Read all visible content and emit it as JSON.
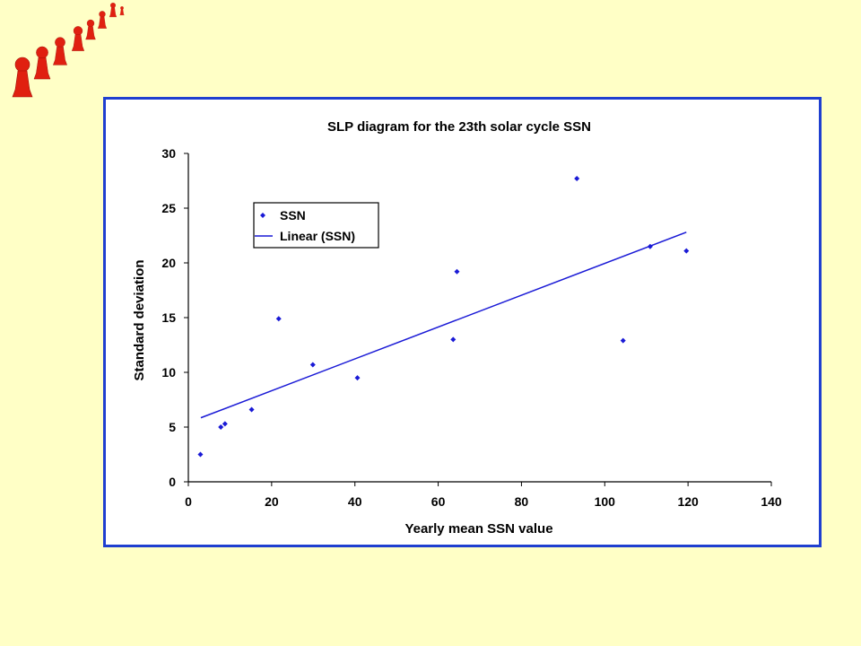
{
  "logo": {
    "icon": "pawn-figures-icon",
    "color": "#E02010"
  },
  "chart_data": {
    "type": "scatter",
    "title": "SLP diagram for the 23th solar cycle SSN",
    "xlabel": "Yearly mean SSN value",
    "ylabel": "Standard deviation",
    "xlim": [
      0,
      140
    ],
    "ylim": [
      0,
      30
    ],
    "x_ticks": [
      "0",
      "20",
      "40",
      "60",
      "80",
      "100",
      "120",
      "140"
    ],
    "y_ticks": [
      "0",
      "5",
      "10",
      "15",
      "20",
      "25",
      "30"
    ],
    "grid": false,
    "legend_position": "top-left",
    "series": [
      {
        "name": "SSN",
        "kind": "points",
        "color": "#1A1AD6",
        "points": [
          [
            2.9,
            2.5
          ],
          [
            7.8,
            5.0
          ],
          [
            8.8,
            5.3
          ],
          [
            15.2,
            6.6
          ],
          [
            21.7,
            14.9
          ],
          [
            29.9,
            10.7
          ],
          [
            40.6,
            9.5
          ],
          [
            63.6,
            13.0
          ],
          [
            64.5,
            19.2
          ],
          [
            93.3,
            27.7
          ],
          [
            104.4,
            12.9
          ],
          [
            110.9,
            21.5
          ],
          [
            119.6,
            21.1
          ]
        ]
      },
      {
        "name": "Linear (SSN)",
        "kind": "trendline",
        "color": "#1A1AD6",
        "points": [
          [
            3,
            5.85
          ],
          [
            119.6,
            22.8
          ]
        ]
      }
    ]
  }
}
